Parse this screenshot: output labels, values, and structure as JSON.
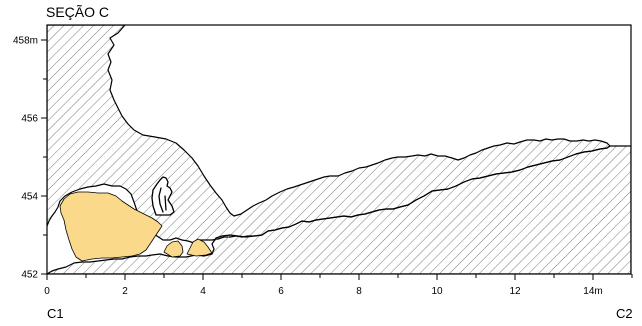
{
  "section_title": "SEÇÃO C",
  "corner_labels": {
    "left": "C1",
    "right": "C2"
  },
  "y_axis": {
    "ticks": [
      {
        "value": 458,
        "label": "458m"
      },
      {
        "value": 456,
        "label": "456"
      },
      {
        "value": 454,
        "label": "454"
      },
      {
        "value": 452,
        "label": "452"
      }
    ]
  },
  "x_axis": {
    "ticks": [
      {
        "value": 0,
        "label": "0"
      },
      {
        "value": 2,
        "label": "2"
      },
      {
        "value": 4,
        "label": "4"
      },
      {
        "value": 6,
        "label": "6"
      },
      {
        "value": 8,
        "label": "8"
      },
      {
        "value": 10,
        "label": "10"
      },
      {
        "value": 12,
        "label": "12"
      },
      {
        "value": 14,
        "label": "14m"
      }
    ]
  },
  "colors": {
    "rock_hatch": "#7a7a7a",
    "sediment_fill": "#fbd98a",
    "outline": "#000000"
  }
}
